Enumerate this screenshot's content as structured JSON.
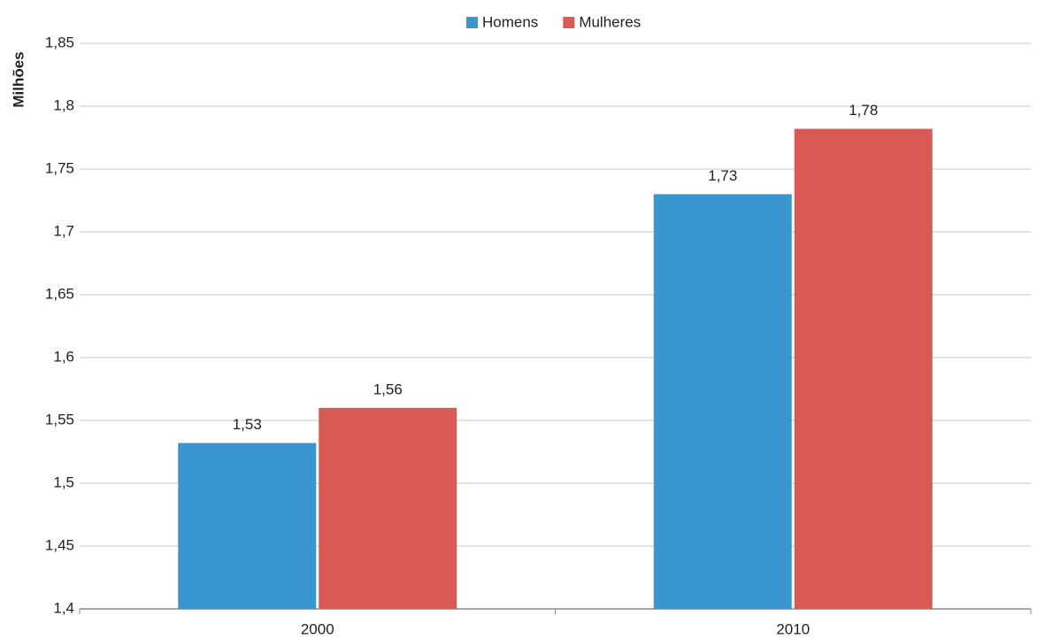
{
  "chart_data": {
    "type": "bar",
    "y_label": "Milhões",
    "categories": [
      "2000",
      "2010"
    ],
    "series": [
      {
        "name": "Homens",
        "color": "#3a96cf",
        "values": [
          1.532,
          1.73
        ],
        "value_labels": [
          "1,53",
          "1,73"
        ]
      },
      {
        "name": "Mulheres",
        "color": "#d95a55",
        "values": [
          1.56,
          1.782
        ],
        "value_labels": [
          "1,56",
          "1,78"
        ]
      }
    ],
    "ylim": [
      1.4,
      1.85
    ],
    "yticks": [
      {
        "value": 1.4,
        "label": "1,4"
      },
      {
        "value": 1.45,
        "label": "1,45"
      },
      {
        "value": 1.5,
        "label": "1,5"
      },
      {
        "value": 1.55,
        "label": "1,55"
      },
      {
        "value": 1.6,
        "label": "1,6"
      },
      {
        "value": 1.65,
        "label": "1,65"
      },
      {
        "value": 1.7,
        "label": "1,7"
      },
      {
        "value": 1.75,
        "label": "1,75"
      },
      {
        "value": 1.8,
        "label": "1,8"
      },
      {
        "value": 1.85,
        "label": "1,85"
      }
    ],
    "grid": true,
    "legend": "top"
  }
}
